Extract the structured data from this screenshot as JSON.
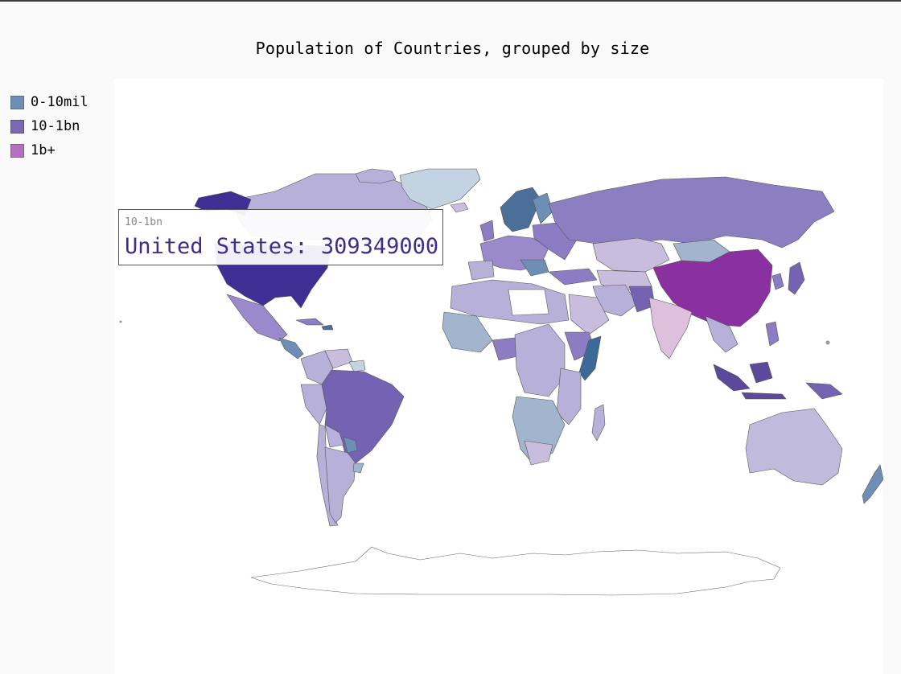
{
  "chart_data": {
    "type": "choropleth",
    "title": "Population of Countries, grouped by size",
    "legend_position": "left",
    "series": [
      {
        "name": "0-10mil",
        "color": "#6e8fb5"
      },
      {
        "name": "10-1bn",
        "color": "#7d68b5"
      },
      {
        "name": "1b+",
        "color": "#b36fc0"
      }
    ],
    "tooltip": {
      "series": "10-1bn",
      "text": "United States: 309349000",
      "country": "United States",
      "value": 309349000
    }
  },
  "colors": {
    "background": "#f9f9f9",
    "plot_background": "#ffffff",
    "series_1": "#6e8fb5",
    "series_2": "#7d68b5",
    "series_3": "#b36fc0",
    "highlight_usa": "#3f2f94",
    "china": "#8b30a0",
    "india": "#ddc0dc"
  }
}
